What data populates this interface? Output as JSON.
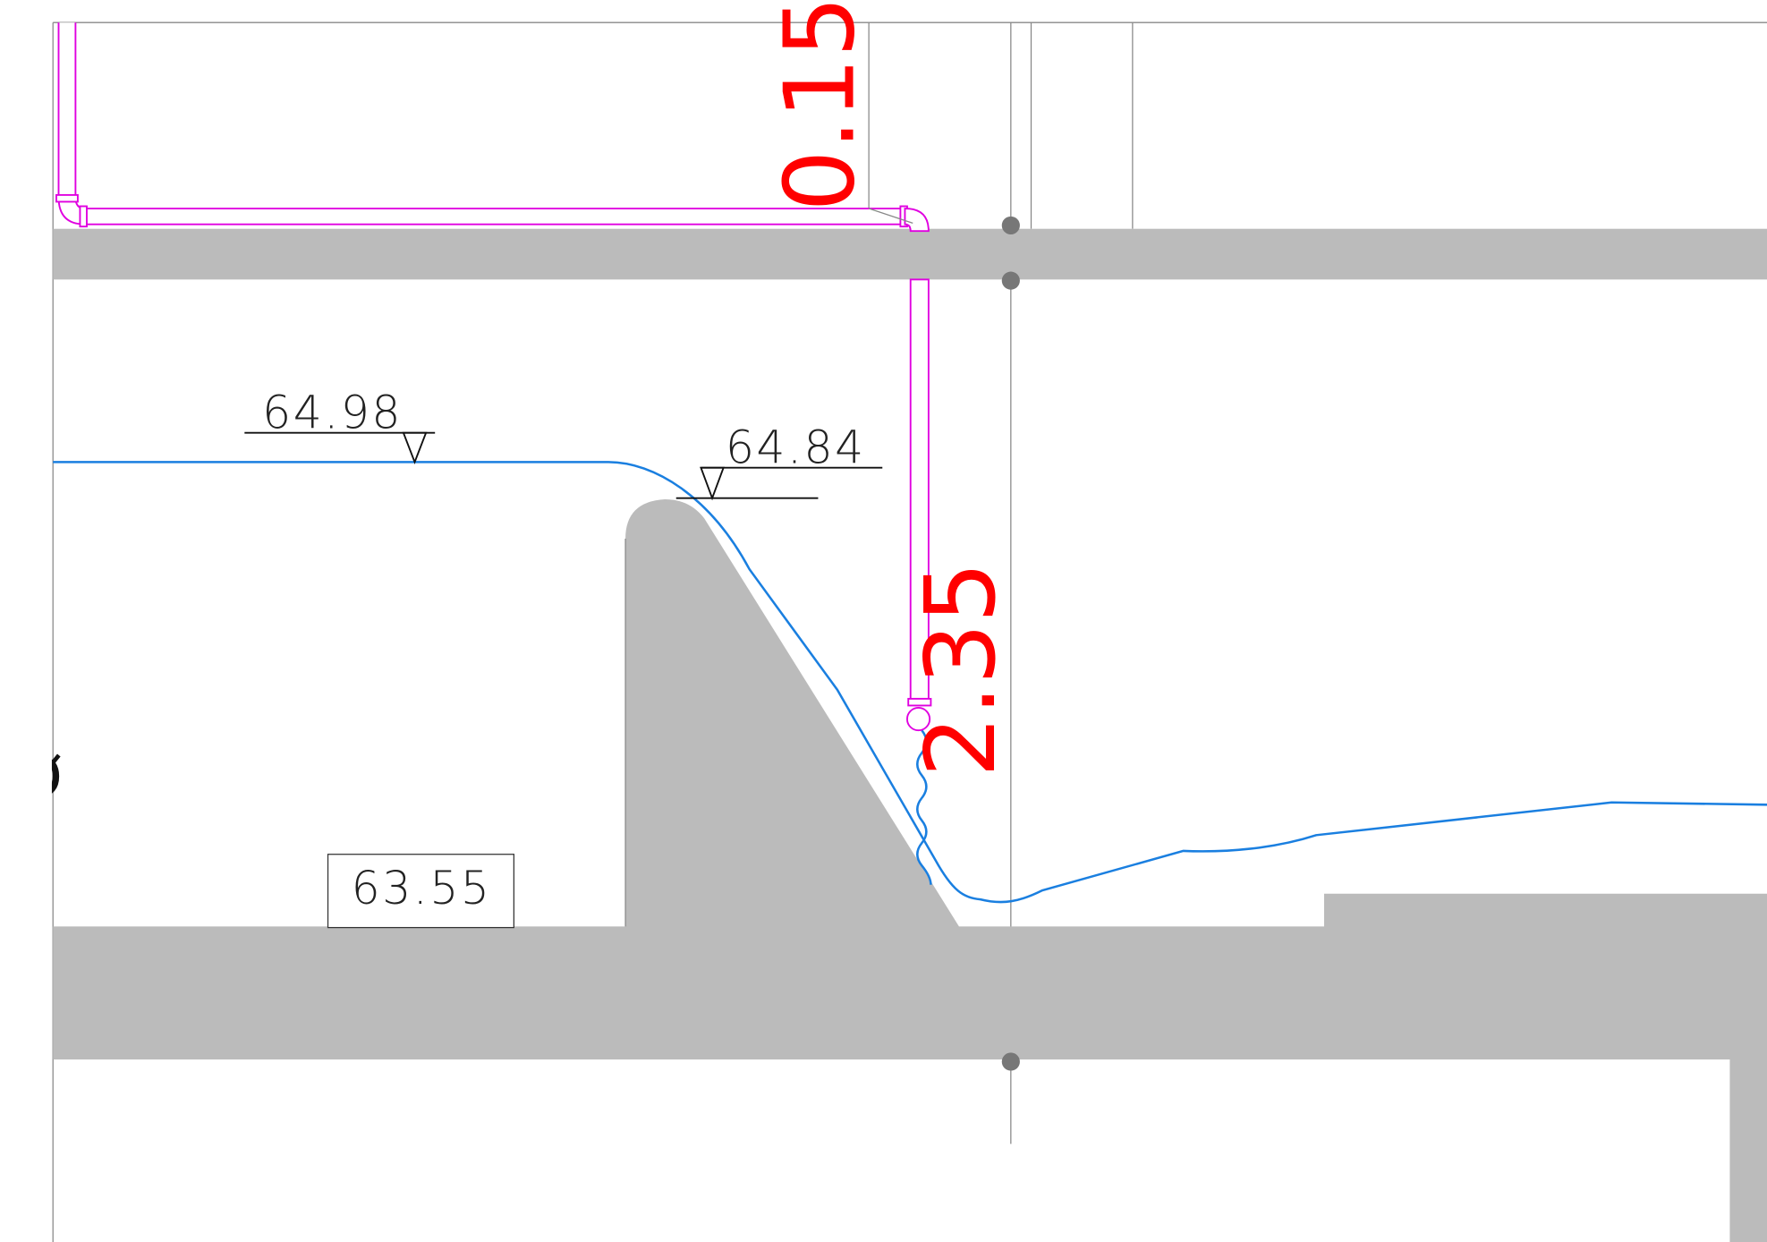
{
  "labels": {
    "elevations": [
      "64.98",
      "64.84"
    ],
    "floor_box": "63.55",
    "dimensions": [
      "0.15",
      "2.35"
    ],
    "symbol": "ø"
  }
}
